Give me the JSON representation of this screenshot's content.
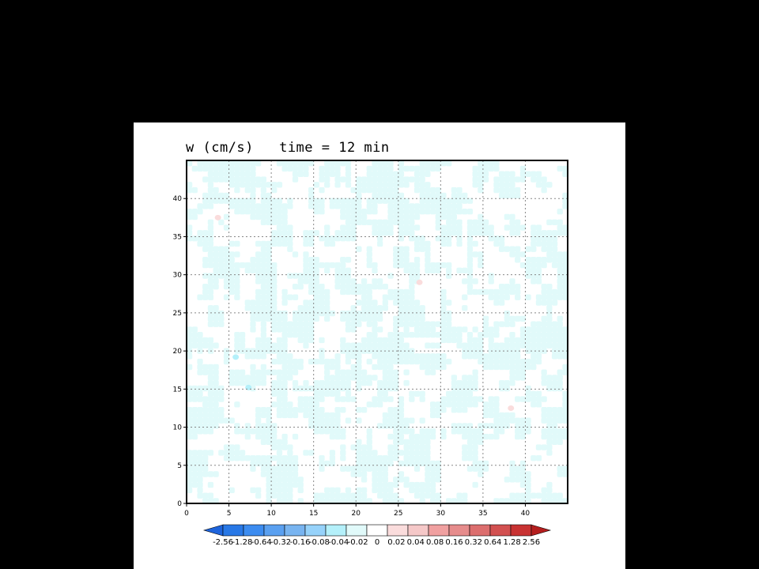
{
  "chart_data": {
    "type": "heatmap",
    "title": "w (cm/s)   time = 12 min",
    "xlim": [
      0,
      45
    ],
    "ylim": [
      0,
      45
    ],
    "x_ticks": [
      0,
      5,
      10,
      15,
      20,
      25,
      30,
      35,
      40
    ],
    "y_ticks": [
      0,
      5,
      10,
      15,
      20,
      25,
      30,
      35,
      40
    ],
    "grid": true,
    "grid_style": "dotted",
    "colorbar": {
      "levels": [
        "-2.56",
        "-1.28",
        "-0.64",
        "-0.32",
        "-0.16",
        "-0.08",
        "-0.04",
        "-0.02",
        "0",
        "0.02",
        "0.04",
        "0.08",
        "0.16",
        "0.32",
        "0.64",
        "1.28",
        "2.56"
      ],
      "colors": [
        "#1e64dc",
        "#2878e6",
        "#3c8cf0",
        "#5aa0f0",
        "#78b4f0",
        "#96d2fa",
        "#b4f0fa",
        "#e1fafa",
        "#ffffff",
        "#fadcdc",
        "#f5c8c8",
        "#f0a0a0",
        "#e68c8c",
        "#dc6e6e",
        "#d25050",
        "#c83232",
        "#b41e1e"
      ],
      "placement": "bottom"
    },
    "field_description_colors": {
      "background": "#ffffff",
      "weak_negative": "#e1fafa",
      "negative": "#b4f0fa",
      "weak_positive": "#fadcdc"
    },
    "notable_values": [
      {
        "x": 3.7,
        "y": 37.5,
        "value": 0.02
      },
      {
        "x": 27.5,
        "y": 29,
        "value": 0.02
      },
      {
        "x": 38.3,
        "y": 12.5,
        "value": 0.02
      },
      {
        "x": 5.8,
        "y": 19.2,
        "value": -0.04
      },
      {
        "x": 7.3,
        "y": 15.2,
        "value": -0.02
      }
    ]
  }
}
